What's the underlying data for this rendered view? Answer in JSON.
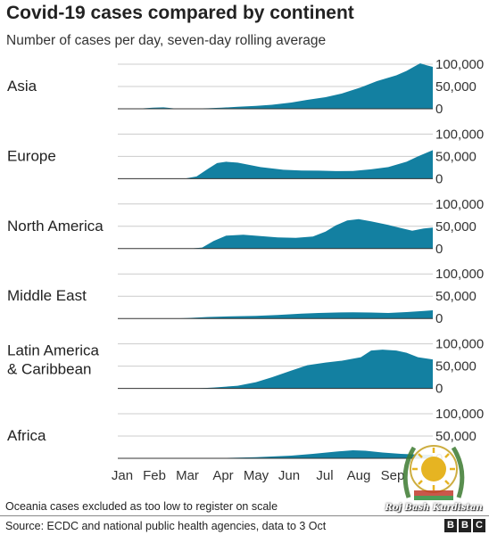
{
  "title": "Covid-19 cases compared by continent",
  "subtitle": "Number of cases per day, seven-day rolling average",
  "footnote": "Oceania cases excluded as too low to register on scale",
  "source": "Source: ECDC and national public health agencies, data to 3 Oct",
  "logo": {
    "letters": [
      "B",
      "B",
      "C"
    ]
  },
  "watermark": {
    "text": "Roj Bash Kurdistan"
  },
  "colors": {
    "area": "#1380a1",
    "text": "#222222",
    "grid": "#cccccc",
    "baseline": "#333333"
  },
  "chart_data": {
    "type": "area",
    "panel_layout": "small-multiples",
    "x_labels": [
      "Jan",
      "Feb",
      "Mar",
      "Apr",
      "May",
      "Jun",
      "Jul",
      "Aug",
      "Sep"
    ],
    "x_domain": [
      "2020-01-01",
      "2020-10-03"
    ],
    "ylim": [
      0,
      100000
    ],
    "y_ticks": [
      0,
      50000,
      100000
    ],
    "y_tick_labels": [
      "0",
      "50,000",
      "100,000"
    ],
    "grid": true,
    "series": [
      {
        "name": "Asia",
        "points": [
          [
            "2020-01-01",
            0
          ],
          [
            "2020-01-20",
            300
          ],
          [
            "2020-02-01",
            2500
          ],
          [
            "2020-02-10",
            3200
          ],
          [
            "2020-02-20",
            800
          ],
          [
            "2020-03-05",
            700
          ],
          [
            "2020-03-20",
            1200
          ],
          [
            "2020-04-01",
            2500
          ],
          [
            "2020-04-15",
            4500
          ],
          [
            "2020-05-01",
            6500
          ],
          [
            "2020-05-15",
            9000
          ],
          [
            "2020-06-01",
            14000
          ],
          [
            "2020-06-15",
            20000
          ],
          [
            "2020-07-01",
            26000
          ],
          [
            "2020-07-15",
            34000
          ],
          [
            "2020-08-01",
            48000
          ],
          [
            "2020-08-15",
            62000
          ],
          [
            "2020-09-01",
            75000
          ],
          [
            "2020-09-10",
            85000
          ],
          [
            "2020-09-17",
            95000
          ],
          [
            "2020-09-22",
            102000
          ],
          [
            "2020-09-27",
            98000
          ],
          [
            "2020-10-03",
            94000
          ]
        ]
      },
      {
        "name": "Europe",
        "points": [
          [
            "2020-01-01",
            0
          ],
          [
            "2020-02-20",
            0
          ],
          [
            "2020-03-01",
            800
          ],
          [
            "2020-03-10",
            5000
          ],
          [
            "2020-03-20",
            22000
          ],
          [
            "2020-03-28",
            35000
          ],
          [
            "2020-04-05",
            38000
          ],
          [
            "2020-04-15",
            36000
          ],
          [
            "2020-04-25",
            31000
          ],
          [
            "2020-05-05",
            26000
          ],
          [
            "2020-05-15",
            23000
          ],
          [
            "2020-05-25",
            20000
          ],
          [
            "2020-06-10",
            18500
          ],
          [
            "2020-06-25",
            18000
          ],
          [
            "2020-07-10",
            17000
          ],
          [
            "2020-07-25",
            17500
          ],
          [
            "2020-08-10",
            21000
          ],
          [
            "2020-08-25",
            26000
          ],
          [
            "2020-09-10",
            38000
          ],
          [
            "2020-09-20",
            50000
          ],
          [
            "2020-10-03",
            64000
          ]
        ]
      },
      {
        "name": "North America",
        "points": [
          [
            "2020-01-01",
            0
          ],
          [
            "2020-03-05",
            0
          ],
          [
            "2020-03-15",
            2500
          ],
          [
            "2020-03-25",
            17000
          ],
          [
            "2020-04-05",
            29000
          ],
          [
            "2020-04-20",
            31000
          ],
          [
            "2020-05-05",
            28000
          ],
          [
            "2020-05-20",
            25000
          ],
          [
            "2020-06-05",
            24000
          ],
          [
            "2020-06-20",
            27000
          ],
          [
            "2020-07-01",
            38000
          ],
          [
            "2020-07-10",
            52000
          ],
          [
            "2020-07-20",
            63000
          ],
          [
            "2020-07-30",
            66000
          ],
          [
            "2020-08-10",
            61000
          ],
          [
            "2020-08-25",
            53000
          ],
          [
            "2020-09-05",
            46000
          ],
          [
            "2020-09-15",
            40000
          ],
          [
            "2020-09-25",
            45000
          ],
          [
            "2020-10-03",
            47000
          ]
        ]
      },
      {
        "name": "Middle East",
        "points": [
          [
            "2020-01-01",
            0
          ],
          [
            "2020-02-20",
            0
          ],
          [
            "2020-03-01",
            1000
          ],
          [
            "2020-03-20",
            3500
          ],
          [
            "2020-04-10",
            5000
          ],
          [
            "2020-05-01",
            6000
          ],
          [
            "2020-05-20",
            8000
          ],
          [
            "2020-06-10",
            11000
          ],
          [
            "2020-06-25",
            12500
          ],
          [
            "2020-07-10",
            13500
          ],
          [
            "2020-07-25",
            14000
          ],
          [
            "2020-08-10",
            13500
          ],
          [
            "2020-08-25",
            12500
          ],
          [
            "2020-09-10",
            14500
          ],
          [
            "2020-09-25",
            17000
          ],
          [
            "2020-10-03",
            18500
          ]
        ]
      },
      {
        "name": "Latin America & Caribbean",
        "points": [
          [
            "2020-01-01",
            0
          ],
          [
            "2020-03-10",
            0
          ],
          [
            "2020-03-25",
            2000
          ],
          [
            "2020-04-15",
            6000
          ],
          [
            "2020-05-01",
            14000
          ],
          [
            "2020-05-15",
            25000
          ],
          [
            "2020-06-01",
            40000
          ],
          [
            "2020-06-15",
            52000
          ],
          [
            "2020-07-01",
            58000
          ],
          [
            "2020-07-15",
            62000
          ],
          [
            "2020-08-01",
            70000
          ],
          [
            "2020-08-10",
            85000
          ],
          [
            "2020-08-20",
            87000
          ],
          [
            "2020-09-01",
            85000
          ],
          [
            "2020-09-10",
            80000
          ],
          [
            "2020-09-20",
            70000
          ],
          [
            "2020-10-03",
            65000
          ]
        ]
      },
      {
        "name": "Africa",
        "points": [
          [
            "2020-01-01",
            0
          ],
          [
            "2020-03-10",
            0
          ],
          [
            "2020-04-01",
            700
          ],
          [
            "2020-05-01",
            2500
          ],
          [
            "2020-06-01",
            6000
          ],
          [
            "2020-06-20",
            10000
          ],
          [
            "2020-07-10",
            15000
          ],
          [
            "2020-07-25",
            18000
          ],
          [
            "2020-08-05",
            17000
          ],
          [
            "2020-08-20",
            13000
          ],
          [
            "2020-09-05",
            10000
          ],
          [
            "2020-09-20",
            8500
          ],
          [
            "2020-10-03",
            8000
          ]
        ]
      }
    ]
  }
}
